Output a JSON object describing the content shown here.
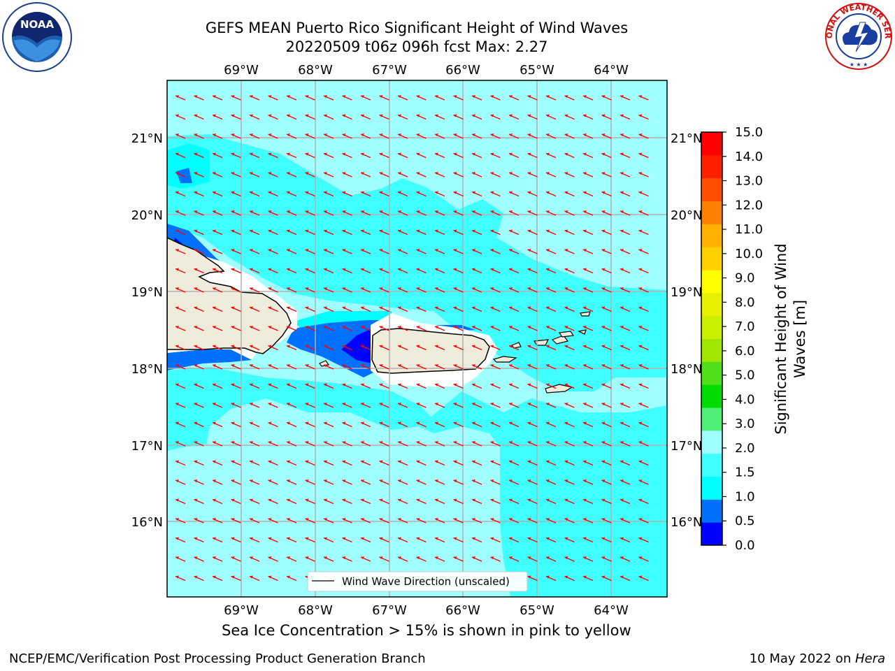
{
  "header": {
    "title_line1": "GEFS MEAN Puerto Rico Significant Height of Wind Waves",
    "title_line2": "20220509 t06z 096h fcst   Max: 2.27"
  },
  "logos": {
    "left": {
      "icon": "noaa-logo-icon",
      "text": "NOAA"
    },
    "right": {
      "icon": "nws-logo-icon",
      "text": "NATIONAL WEATHER SERVICE"
    }
  },
  "map": {
    "lon_labels": [
      "69°W",
      "68°W",
      "67°W",
      "66°W",
      "65°W",
      "64°W"
    ],
    "lat_labels": [
      "21°N",
      "20°N",
      "19°N",
      "18°N",
      "17°N",
      "16°N"
    ],
    "legend_label": "Wind Wave Direction (unscaled)",
    "arrow_color": "#ff0000",
    "land_color": "#efecdc",
    "wave_direction": "toward west-northwest"
  },
  "colorbar": {
    "label": "Significant Height of Wind Waves [m]",
    "label_line1": "Significant Height of Wind",
    "label_line2": "Waves [m]",
    "ticks": [
      "0.0",
      "0.5",
      "1.0",
      "1.5",
      "2.0",
      "3.0",
      "4.0",
      "5.0",
      "6.0",
      "7.0",
      "8.0",
      "9.0",
      "10.0",
      "11.0",
      "12.0",
      "13.0",
      "14.0",
      "15.0"
    ],
    "colors": [
      "#0000ff",
      "#0070ff",
      "#00ffff",
      "#40ffff",
      "#a0ffff",
      "#50f078",
      "#00dc00",
      "#50e01a",
      "#a0e600",
      "#c8f000",
      "#e6f000",
      "#ffff00",
      "#ffd000",
      "#ffb000",
      "#ff8000",
      "#ff5000",
      "#ff2000",
      "#ff0000"
    ]
  },
  "caption": "Sea Ice Concentration > 15% is shown in pink to yellow",
  "footer": {
    "left": "NCEP/EMC/Verification Post Processing Product Generation Branch",
    "right_prefix": "10 May 2022 on ",
    "right_italic": "Hera"
  }
}
